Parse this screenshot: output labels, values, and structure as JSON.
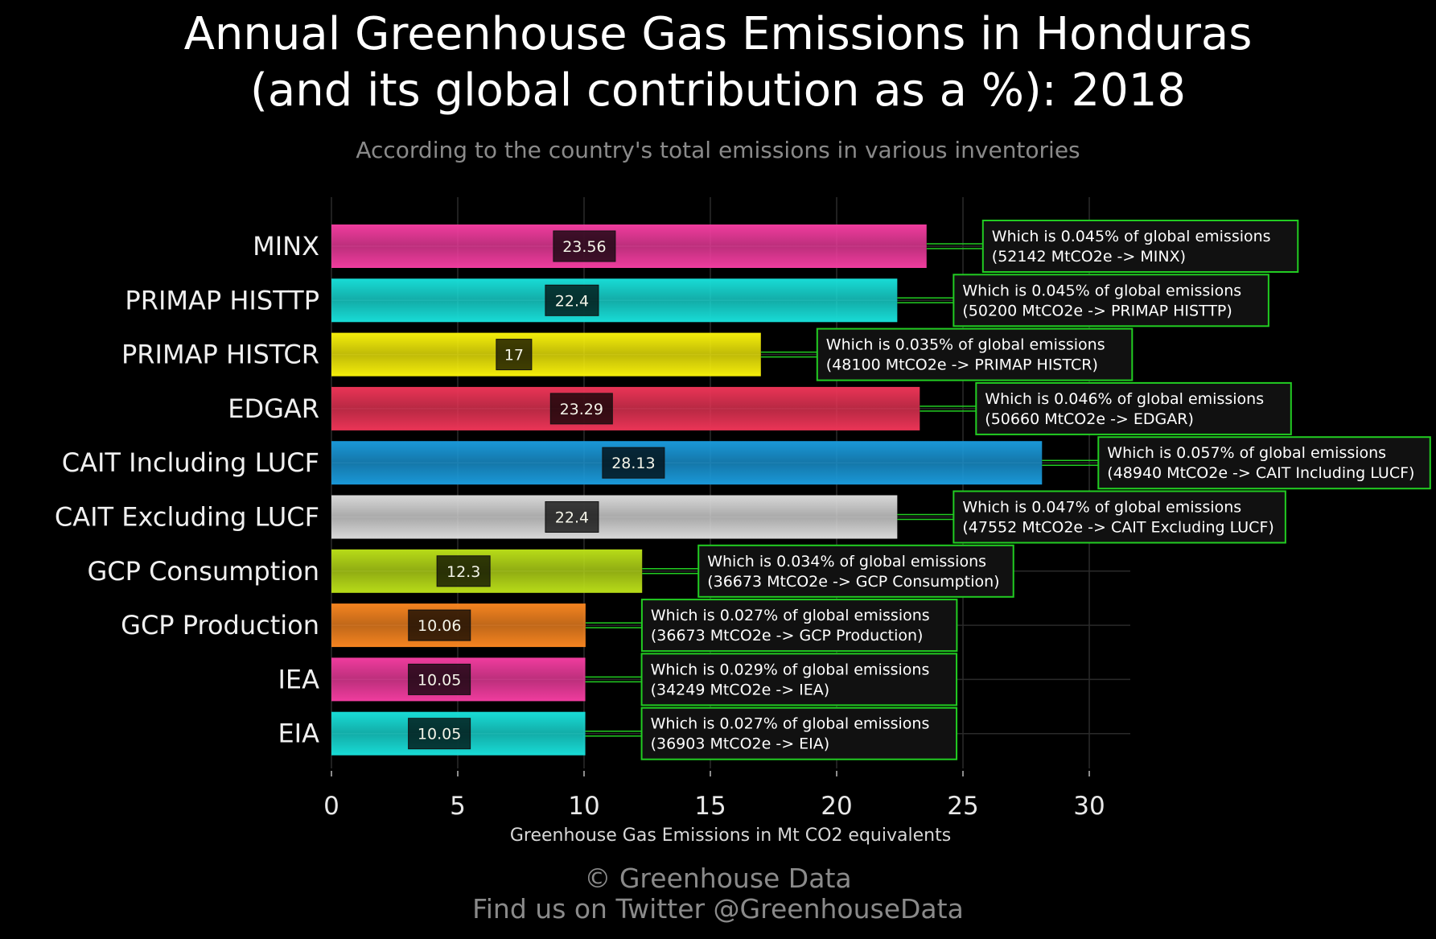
{
  "title_line1": "Annual Greenhouse Gas Emissions in Honduras",
  "title_line2": "(and its global contribution as a %): 2018",
  "subtitle": "According to the country's total emissions in various inventories",
  "footer_line1": "© Greenhouse Data",
  "footer_line2": "Find us on Twitter @GreenhouseData",
  "chart_data": {
    "type": "bar",
    "orientation": "horizontal",
    "xlabel": "Greenhouse Gas Emissions in Mt CO2 equivalents",
    "ylabel": "",
    "xlim": [
      0,
      31.5
    ],
    "xticks": [
      0,
      5,
      10,
      15,
      20,
      25,
      30
    ],
    "grid": true,
    "categories": [
      "MINX",
      "PRIMAP HISTTP",
      "PRIMAP HISTCR",
      "EDGAR",
      "CAIT Including LUCF",
      "CAIT Excluding LUCF",
      "GCP Consumption",
      "GCP Production",
      "IEA",
      "EIA"
    ],
    "values": [
      23.56,
      22.4,
      17,
      23.29,
      28.13,
      22.4,
      12.3,
      10.06,
      10.05,
      10.05
    ],
    "value_labels": [
      "23.56",
      "22.4",
      "17",
      "23.29",
      "28.13",
      "22.4",
      "12.3",
      "10.06",
      "10.05",
      "10.05"
    ],
    "colors": [
      "#f03c9e",
      "#18dcd6",
      "#f5ee0a",
      "#ea3456",
      "#1a98d8",
      "#d8d8d8",
      "#b8dc18",
      "#f58420",
      "#f03c9e",
      "#18dcd6"
    ],
    "annotations": [
      {
        "line1": "Which is 0.045% of global emissions",
        "line2": "(52142 MtCO2e -> MINX)"
      },
      {
        "line1": "Which is 0.045% of global emissions",
        "line2": "(50200 MtCO2e -> PRIMAP HISTTP)"
      },
      {
        "line1": "Which is 0.035% of global emissions",
        "line2": "(48100 MtCO2e -> PRIMAP HISTCR)"
      },
      {
        "line1": "Which is 0.046% of global emissions",
        "line2": "(50660 MtCO2e -> EDGAR)"
      },
      {
        "line1": "Which is 0.057% of global emissions",
        "line2": "(48940 MtCO2e -> CAIT Including LUCF)"
      },
      {
        "line1": "Which is 0.047% of global emissions",
        "line2": "(47552 MtCO2e -> CAIT Excluding LUCF)"
      },
      {
        "line1": "Which is 0.034% of global emissions",
        "line2": "(36673 MtCO2e -> GCP Consumption)"
      },
      {
        "line1": "Which is 0.027% of global emissions",
        "line2": "(36673 MtCO2e -> GCP Production)"
      },
      {
        "line1": "Which is 0.029% of global emissions",
        "line2": "(34249 MtCO2e -> IEA)"
      },
      {
        "line1": "Which is 0.027% of global emissions",
        "line2": "(36903 MtCO2e -> EIA)"
      }
    ],
    "annotation_border_color": "#22cc22"
  }
}
